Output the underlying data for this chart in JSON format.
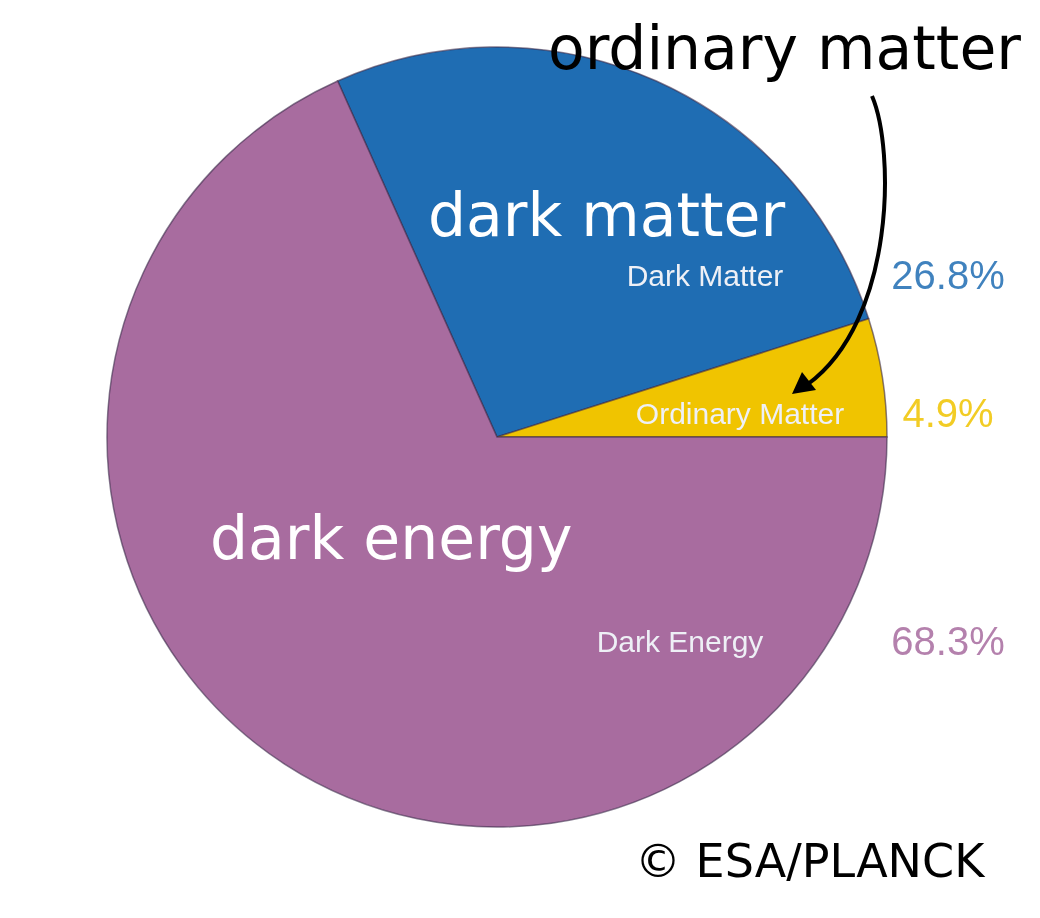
{
  "chart_data": {
    "type": "pie",
    "categories": [
      "Dark Matter",
      "Ordinary Matter",
      "Dark Energy"
    ],
    "values": [
      26.8,
      4.9,
      68.3
    ],
    "colors": [
      "#1f6db3",
      "#f0c400",
      "#a86c9f"
    ],
    "value_labels": [
      "26.8%",
      "4.9%",
      "68.3%"
    ],
    "annotations": [
      "dark matter",
      "dark energy",
      "ordinary matter",
      "© ESA/PLANCK"
    ]
  }
}
